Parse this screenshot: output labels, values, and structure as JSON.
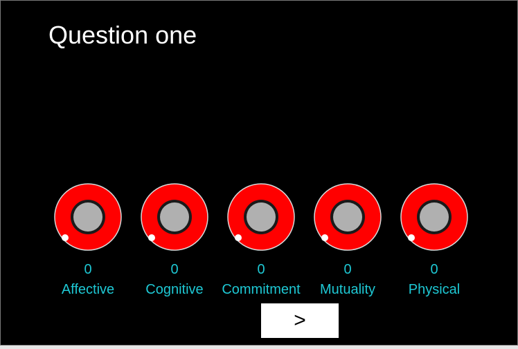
{
  "question": {
    "title": "Question one"
  },
  "colors": {
    "background": "#000000",
    "ring": "#ff0000",
    "hub": "#b0b0b0",
    "outline": "#d8d8d8",
    "indicator": "#ffffff",
    "text_accent": "#1ec8d4"
  },
  "knobs": [
    {
      "value": "0",
      "label": "Affective"
    },
    {
      "value": "0",
      "label": "Cognitive"
    },
    {
      "value": "0",
      "label": "Commitment"
    },
    {
      "value": "0",
      "label": "Mutuality"
    },
    {
      "value": "0",
      "label": "Physical"
    }
  ],
  "next_button": {
    "label": ">"
  }
}
